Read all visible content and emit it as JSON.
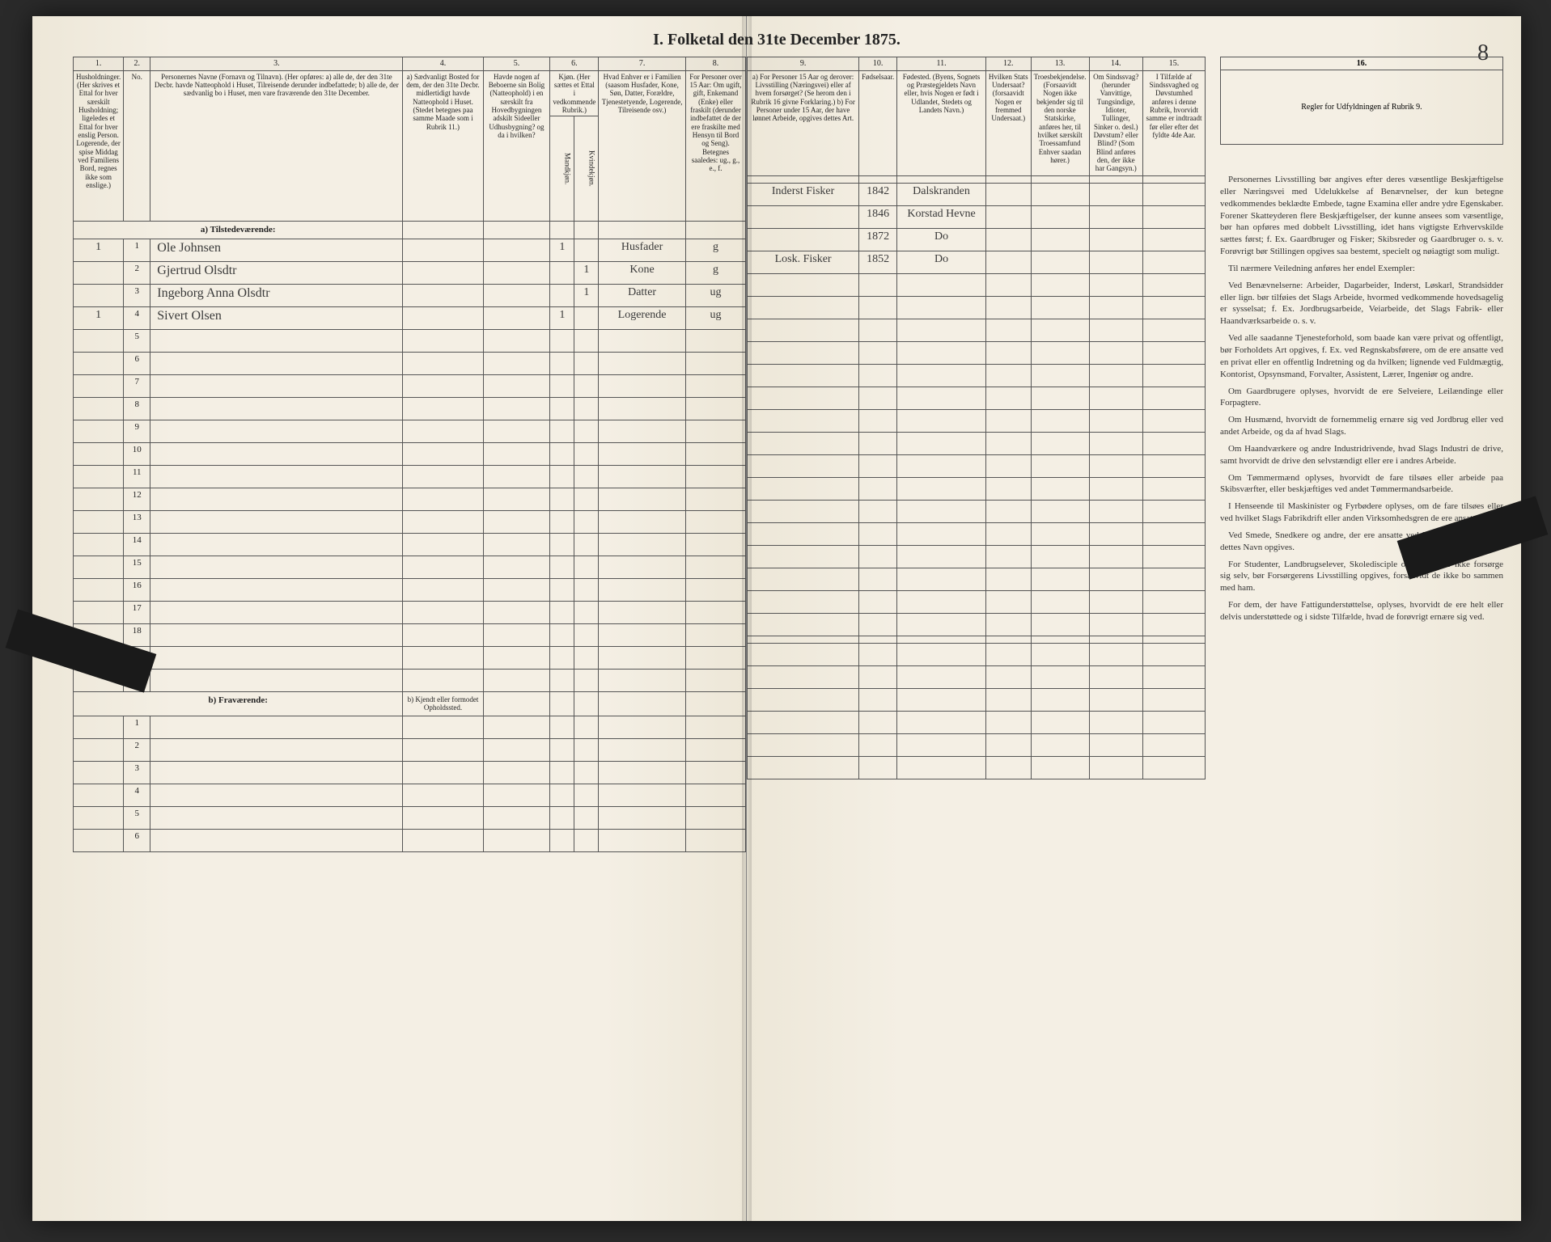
{
  "title": "I. Folketal den 31te December 1875.",
  "page_number": "8",
  "columns_left": [
    {
      "num": "1.",
      "head": "Husholdninger. (Her skrives et Ettal for hver særskilt Husholdning; ligeledes et Ettal for hver enslig Person. Logerende, der spise Middag ved Familiens Bord, regnes ikke som enslige.)",
      "w": "7%"
    },
    {
      "num": "2.",
      "head": "No.",
      "w": "4%"
    },
    {
      "num": "3.",
      "head": "Personernes Navne (Fornavn og Tilnavn). (Her opføres: a) alle de, der den 31te Decbr. havde Natteophold i Huset, Tilreisende derunder indbefattede; b) alle de, der sædvanlig bo i Huset, men vare fraværende den 31te December.",
      "w": "38%"
    },
    {
      "num": "4.",
      "head": "a) Sædvanligt Bosted for dem, der den 31te Decbr. midlertidigt havde Natteophold i Huset. (Stedet betegnes paa samme Maade som i Rubrik 11.)",
      "w": "12%"
    },
    {
      "num": "5.",
      "head": "Havde nogen af Beboerne sin Bolig (Natteophold) i en særskilt fra Hovedbygningen adskilt Sideeller Udhusbygning? og da i hvilken?",
      "w": "10%"
    },
    {
      "num": "6.",
      "head": "Kjøn. (Her sættes et Ettal i vedkommende Rubrik.)",
      "w": "7%"
    },
    {
      "num": "7.",
      "head": "Hvad Enhver er i Familien (saasom Husfader, Kone, Søn, Datter, Forældre, Tjenestetyende, Logerende, Tilreisende osv.)",
      "w": "13%"
    },
    {
      "num": "8.",
      "head": "For Personer over 15 Aar: Om ugift, gift, Enkemand (Enke) eller fraskilt (derunder indbefattet de der ere fraskilte med Hensyn til Bord og Seng). Betegnes saaledes: ug., g., e., f.",
      "w": "9%"
    }
  ],
  "columns_right": [
    {
      "num": "9.",
      "head": "a) For Personer 15 Aar og derover: Livsstilling (Næringsvei) eller af hvem forsørget? (Se herom den i Rubrik 16 givne Forklaring.) b) For Personer under 15 Aar, der have lønnet Arbeide, opgives dettes Art.",
      "w": "26%"
    },
    {
      "num": "10.",
      "head": "Fødselsaar.",
      "w": "8%"
    },
    {
      "num": "11.",
      "head": "Fødested. (Byens, Sognets og Præstegjeldets Navn eller, hvis Nogen er født i Udlandet, Stedets og Landets Navn.)",
      "w": "20%"
    },
    {
      "num": "12.",
      "head": "Hvilken Stats Undersaat? (forsaavidt Nogen er fremmed Undersaat.)",
      "w": "10%"
    },
    {
      "num": "13.",
      "head": "Troesbekjendelse. (Forsaavidt Nogen ikke bekjender sig til den norske Statskirke, anføres her, til hvilket særskilt Troessamfund Enhver saadan hører.)",
      "w": "10%"
    },
    {
      "num": "14.",
      "head": "Om Sindssvag? (herunder Vanvittige, Tungsindige, Idioter, Tullinger, Sinker o. desl.) Døvstum? eller Blind? (Som Blind anføres den, der ikke har Gangsyn.)",
      "w": "12%"
    },
    {
      "num": "15.",
      "head": "I Tilfælde af Sindssvaghed og Døvstumhed anføres i denne Rubrik, hvorvidt samme er indtraadt før eller efter det fyldte 4de Aar.",
      "w": "14%"
    }
  ],
  "col16": {
    "num": "16.",
    "head": "Regler for Udfyldningen af Rubrik 9."
  },
  "sex_sub": {
    "m": "Mandkjøn.",
    "k": "Kvindekjøn."
  },
  "section_a": "a) Tilstedeværende:",
  "section_b": "b) Fraværende:",
  "section_b_col4": "b) Kjendt eller formodet Opholdssted.",
  "rows": [
    {
      "hh": "1",
      "no": "1",
      "name": "Ole Johnsen",
      "m": "1",
      "k": "",
      "fam": "Husfader",
      "stat": "g",
      "occ": "Inderst Fisker",
      "year": "1842",
      "place": "Dalskranden"
    },
    {
      "hh": "",
      "no": "2",
      "name": "Gjertrud Olsdtr",
      "m": "",
      "k": "1",
      "fam": "Kone",
      "stat": "g",
      "occ": "",
      "year": "1846",
      "place": "Korstad Hevne"
    },
    {
      "hh": "",
      "no": "3",
      "name": "Ingeborg Anna Olsdtr",
      "m": "",
      "k": "1",
      "fam": "Datter",
      "stat": "ug",
      "occ": "",
      "year": "1872",
      "place": "Do"
    },
    {
      "hh": "1",
      "no": "4",
      "name": "Sivert Olsen",
      "m": "1",
      "k": "",
      "fam": "Logerende",
      "stat": "ug",
      "occ": "Losk. Fisker",
      "year": "1852",
      "place": "Do"
    }
  ],
  "instructions_heading": "Personernes Livsstilling",
  "instructions": [
    "Personernes Livsstilling bør angives efter deres væsentlige Beskjæftigelse eller Næringsvei med Udelukkelse af Benævnelser, der kun betegne vedkommendes beklædte Embede, tagne Examina eller andre ydre Egenskaber. Forener Skatteyderen flere Beskjæftigelser, der kunne ansees som væsentlige, bør han opføres med dobbelt Livsstilling, idet hans vigtigste Erhvervskilde sættes først; f. Ex. Gaardbruger og Fisker; Skibsreder og Gaardbruger o. s. v. Forøvrigt bør Stillingen opgives saa bestemt, specielt og nøiagtigt som muligt.",
    "Til nærmere Veiledning anføres her endel Exempler:",
    "Ved Benævnelserne: Arbeider, Dagarbeider, Inderst, Løskarl, Strandsidder eller lign. bør tilføies det Slags Arbeide, hvormed vedkommende hovedsagelig er sysselsat; f. Ex. Jordbrugsarbeide, Veiarbeide, det Slags Fabrik- eller Haandværksarbeide o. s. v.",
    "Ved alle saadanne Tjenesteforhold, som baade kan være privat og offentligt, bør Forholdets Art opgives, f. Ex. ved Regnskabsførere, om de ere ansatte ved en privat eller en offentlig Indretning og da hvilken; lignende ved Fuldmægtig, Kontorist, Opsynsmand, Forvalter, Assistent, Lærer, Ingeniør og andre.",
    "Om Gaardbrugere oplyses, hvorvidt de ere Selveiere, Leilændinge eller Forpagtere.",
    "Om Husmænd, hvorvidt de fornemmelig ernære sig ved Jordbrug eller ved andet Arbeide, og da af hvad Slags.",
    "Om Haandværkere og andre Industridrivende, hvad Slags Industri de drive, samt hvorvidt de drive den selvstændigt eller ere i andres Arbeide.",
    "Om Tømmermænd oplyses, hvorvidt de fare tilsøes eller arbeide paa Skibsværfter, eller beskjæftiges ved andet Tømmermandsarbeide.",
    "I Henseende til Maskinister og Fyrbødere oplyses, om de fare tilsøes eller ved hvilket Slags Fabrikdrift eller anden Virksomhedsgren de ere ansatte.",
    "Ved Smede, Snedkere og andre, der ere ansatte ved Fabriker og Brug, bør dettes Navn opgives.",
    "For Studenter, Landbrugselever, Skoledisciple og andre, der ikke forsørge sig selv, bør Forsørgerens Livsstilling opgives, forsaavidt de ikke bo sammen med ham.",
    "For dem, der have Fattigunderstøttelse, oplyses, hvorvidt de ere helt eller delvis understøttede og i sidste Tilfælde, hvad de forøvrigt ernære sig ved."
  ]
}
